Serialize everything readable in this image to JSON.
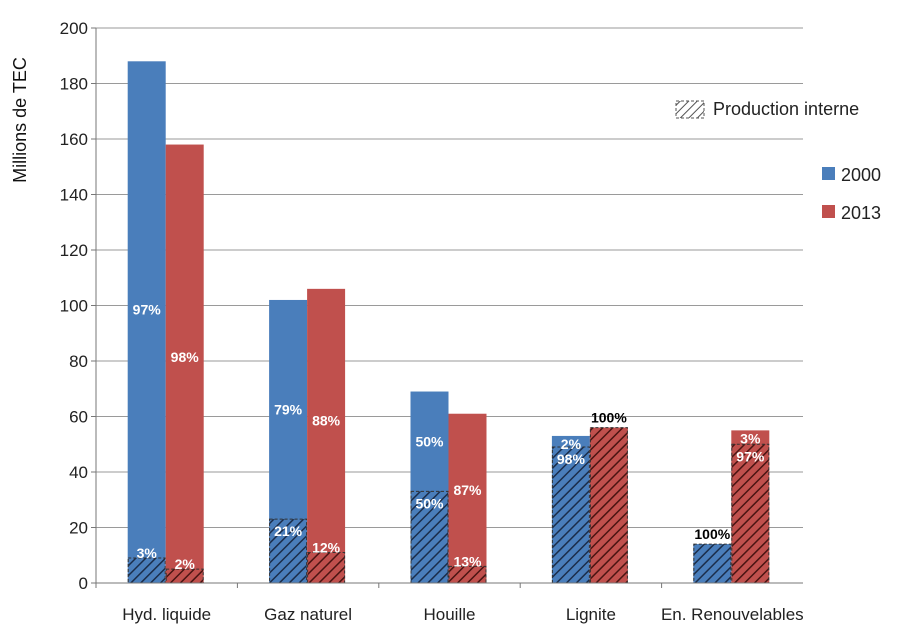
{
  "chart_data": {
    "type": "bar",
    "ylabel": "Millions de TEC",
    "xlabel": "",
    "ylim": [
      0,
      200
    ],
    "yticks": [
      0,
      20,
      40,
      60,
      80,
      100,
      120,
      140,
      160,
      180,
      200
    ],
    "grid": true,
    "categories": [
      "Hyd. liquide",
      "Gaz naturel",
      "Houille",
      "Lignite",
      "En. Renouvelables"
    ],
    "series": [
      {
        "name": "2000",
        "color": "#4a7ebb",
        "values": [
          188,
          102,
          69,
          53,
          14
        ],
        "production_interne": [
          9,
          23,
          33,
          49,
          14
        ],
        "label_top": [
          "97%",
          "79%",
          "50%",
          "2%",
          "100%"
        ],
        "label_bottom": [
          "3%",
          "21%",
          "50%",
          "98%",
          ""
        ]
      },
      {
        "name": "2013",
        "color": "#c0504d",
        "values": [
          158,
          106,
          61,
          56,
          55
        ],
        "production_interne": [
          5,
          11,
          6,
          56,
          50
        ],
        "label_top": [
          "98%",
          "88%",
          "87%",
          "100%",
          "3%"
        ],
        "label_bottom": [
          "2%",
          "12%",
          "13%",
          "",
          "97%"
        ]
      }
    ],
    "legend": {
      "placement": "right",
      "hatch_label": "Production interne",
      "entries": [
        "2000",
        "2013"
      ]
    }
  }
}
